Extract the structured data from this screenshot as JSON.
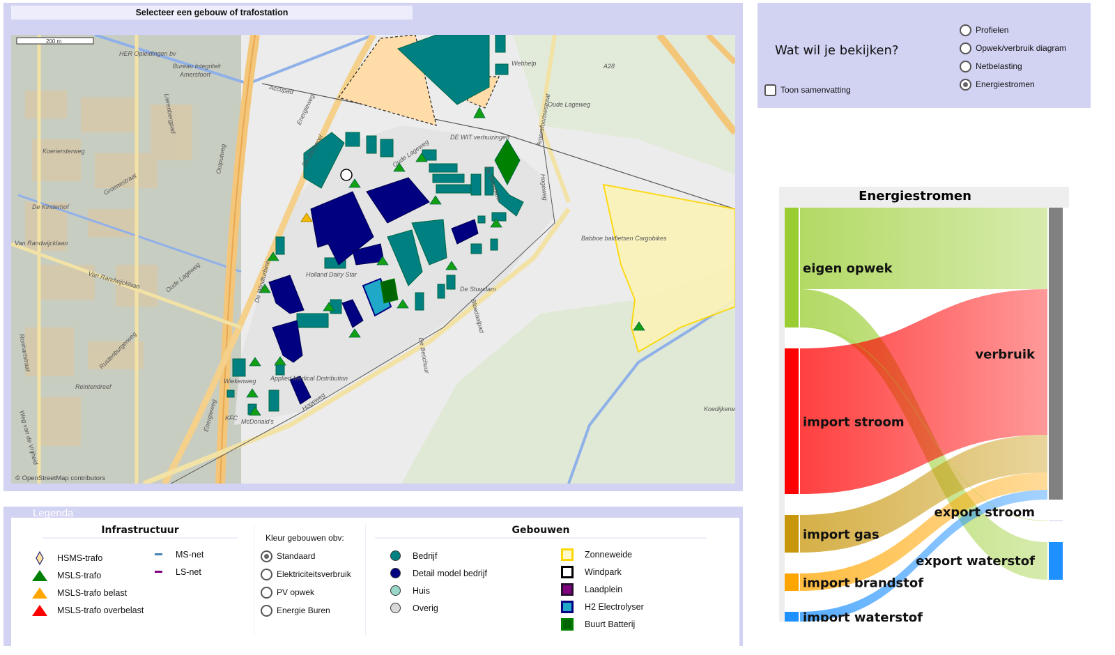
{
  "map_panel": {
    "header": "Selecteer een gebouw of trafostation",
    "scale_label": "200 m",
    "attribution": "© OpenStreetMap contributors",
    "labels": [
      "HER Opleidingen bv",
      "Bureau Integriteit",
      "Amersfoort",
      "Accupad",
      "Energieweg",
      "De Zonnecel",
      "Oude Lageweg",
      "De Stuwdam",
      "Hogeweg",
      "Amersfoortsestraat",
      "Oude Lageweg",
      "A28",
      "Koeriersterweg",
      "De Kinderhof",
      "Groenestraat",
      "Van Randwijcklaan",
      "Van Randwijcklaan",
      "Oude Lageweg",
      "Outputweg",
      "Rustenburgerweg",
      "Lierenbergpad",
      "Holland Dairy Star",
      "De Windturbine",
      "Wiekenweg",
      "Applied Medical Distribution",
      "Babboe bakfietsen Cargobikes",
      "De Stuwdam",
      "Bloedaalpad",
      "De Beschuur",
      "Koedijkerweg",
      "Reintendreef",
      "Weg van de Vrijheid",
      "Ronhartstraat",
      "Hogeweg",
      "McDonald's",
      "KFC",
      "Energieweg",
      "DE WIT verhuizingen",
      "Webhelp"
    ]
  },
  "controls": {
    "title": "Wat wil je bekijken?",
    "summary_checkbox": {
      "label": "Toon samenvatting",
      "checked": false
    },
    "options": [
      {
        "label": "Profielen",
        "selected": false
      },
      {
        "label": "Opwek/verbruik diagram",
        "selected": false
      },
      {
        "label": "Netbelasting",
        "selected": false
      },
      {
        "label": "Energiestromen",
        "selected": true
      }
    ]
  },
  "sankey": {
    "title": "Energiestromen",
    "nodes": [
      {
        "id": "eigen",
        "label": "eigen opwek",
        "color": "#9acd32",
        "side": "left"
      },
      {
        "id": "istroom",
        "label": "import stroom",
        "color": "#ff0000",
        "side": "left"
      },
      {
        "id": "igas",
        "label": "import gas",
        "color": "#c8960a",
        "side": "left"
      },
      {
        "id": "ibrand",
        "label": "import brandstof",
        "color": "#ffa500",
        "side": "left"
      },
      {
        "id": "iwater",
        "label": "import waterstof",
        "color": "#1e90ff",
        "side": "left"
      },
      {
        "id": "verbruik",
        "label": "verbruik",
        "color": "#808080",
        "side": "right"
      },
      {
        "id": "estroom",
        "label": "export stroom",
        "color": "#c8c8f0",
        "side": "right"
      },
      {
        "id": "ewater",
        "label": "export waterstof",
        "color": "#1e90ff",
        "side": "right"
      }
    ],
    "links": [
      {
        "source": "eigen",
        "target": "verbruik",
        "value": 117
      },
      {
        "source": "eigen",
        "target": "ewater",
        "value": 54
      },
      {
        "source": "istroom",
        "target": "verbruik",
        "value": 209
      },
      {
        "source": "igas",
        "target": "verbruik",
        "value": 54
      },
      {
        "source": "ibrand",
        "target": "verbruik",
        "value": 25
      },
      {
        "source": "iwater",
        "target": "verbruik",
        "value": 14
      },
      {
        "source": "eigen",
        "target": "estroom",
        "value": 1
      }
    ]
  },
  "legend": {
    "title": "Legenda",
    "infra": {
      "heading": "Infrastructuur",
      "items": [
        {
          "label": "HSMS-trafo",
          "icon": "diamond",
          "color": "#ffe4a0"
        },
        {
          "label": "MSLS-trafo",
          "icon": "triangle",
          "color": "#008000"
        },
        {
          "label": "MSLS-trafo belast",
          "icon": "triangle",
          "color": "#ffa500"
        },
        {
          "label": "MSLS-trafo overbelast",
          "icon": "triangle",
          "color": "#ff0000"
        }
      ],
      "nets": [
        {
          "label": "MS-net",
          "color": "#4682b4"
        },
        {
          "label": "LS-net",
          "color": "#800080"
        }
      ]
    },
    "color_by": {
      "label": "Kleur gebouwen obv:",
      "options": [
        {
          "label": "Standaard",
          "selected": true
        },
        {
          "label": "Elektriciteitsverbruik",
          "selected": false
        },
        {
          "label": "PV opwek",
          "selected": false
        },
        {
          "label": "Energie Buren",
          "selected": false
        }
      ]
    },
    "buildings": {
      "heading": "Gebouwen",
      "dots": [
        {
          "label": "Bedrijf",
          "color": "#008080"
        },
        {
          "label": "Detail model bedrijf",
          "color": "#000080"
        },
        {
          "label": "Huis",
          "color": "#99d8c9"
        },
        {
          "label": "Overig",
          "color": "#d9d9d9"
        }
      ],
      "squares": [
        {
          "label": "Zonneweide",
          "fill": "#fffacd",
          "border": "#ffd700"
        },
        {
          "label": "Windpark",
          "fill": "#ffffff",
          "border": "#000000"
        },
        {
          "label": "Laadplein",
          "fill": "#800080",
          "border": "#2a1030"
        },
        {
          "label": "H2 Electrolyser",
          "fill": "#20a8c8",
          "border": "#000080"
        },
        {
          "label": "Buurt Batterij",
          "fill": "#006400",
          "border": "#008000"
        }
      ]
    }
  }
}
